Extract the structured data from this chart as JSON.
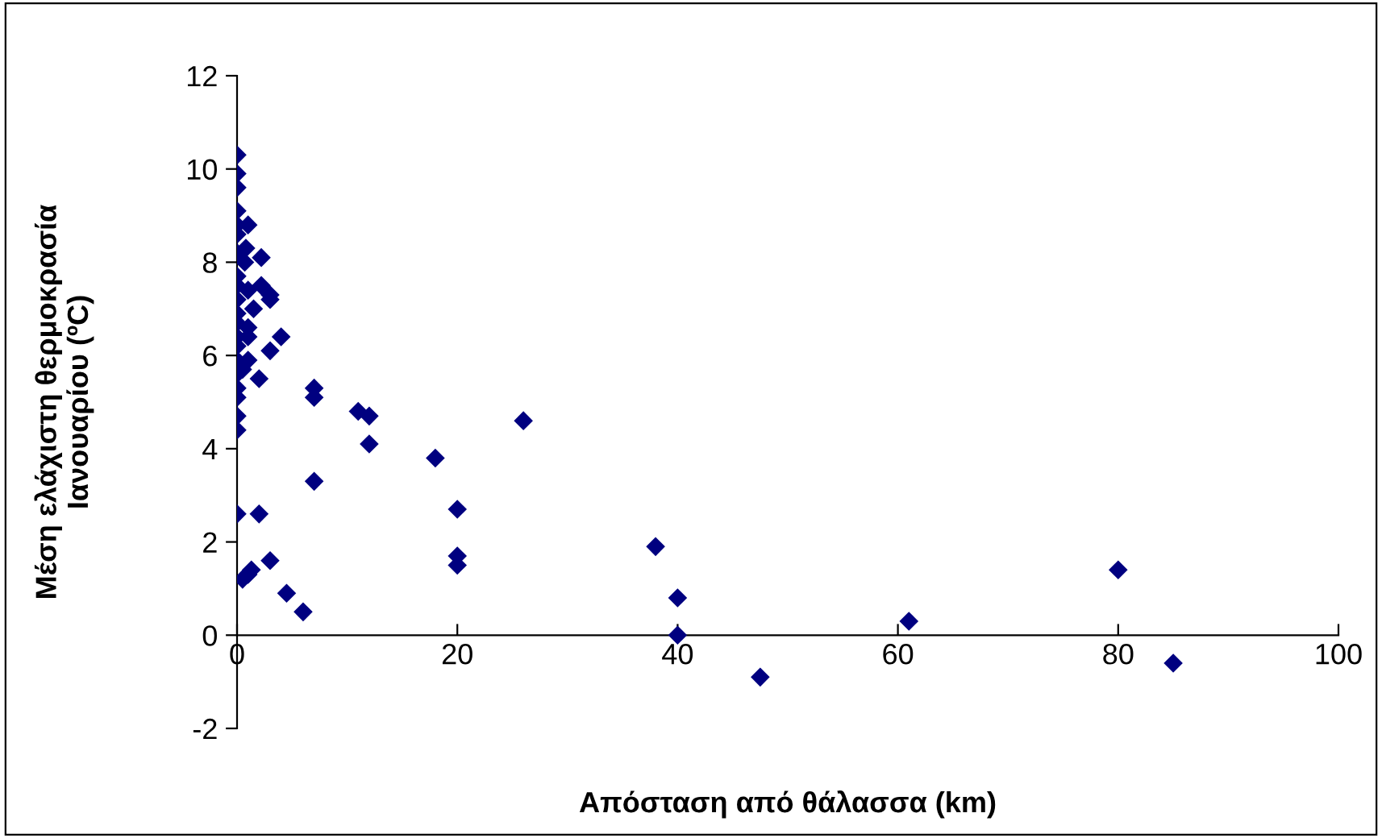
{
  "chart_data": {
    "type": "scatter",
    "xlabel": "Απόσταση από θάλασσα (km)",
    "ylabel": "Μέση ελάχιστη θερμοκρασία\nΙανουαρίου (ºC)",
    "marker": "diamond",
    "grid": false,
    "legend": false,
    "xlim": [
      0,
      100
    ],
    "xticks": [
      0,
      20,
      40,
      60,
      80,
      100
    ],
    "ylim": [
      -2,
      12
    ],
    "yticks": [
      -2,
      0,
      2,
      4,
      6,
      8,
      10,
      12
    ],
    "series": [
      {
        "color": "#000080",
        "x": [
          0,
          0,
          0,
          0,
          0,
          0,
          0,
          0,
          0,
          0,
          0,
          0,
          0,
          0,
          0,
          0,
          0,
          0,
          0,
          0,
          0,
          1,
          0.8,
          0.7,
          1,
          1.5,
          1,
          1,
          1,
          0.5,
          0.5,
          1,
          1.3,
          2.2,
          2.2,
          3,
          3,
          3,
          4,
          2,
          2,
          3,
          4.5,
          6,
          7,
          7,
          7,
          11,
          12,
          12,
          18,
          20,
          20,
          20,
          26,
          38,
          40,
          40,
          47.5,
          61,
          80,
          85
        ],
        "values": [
          10.3,
          9.9,
          9.6,
          9.1,
          8.8,
          8.6,
          8.2,
          7.7,
          7.5,
          7.2,
          6.9,
          6.7,
          6.4,
          6.2,
          5.9,
          5.6,
          5.3,
          5.1,
          4.7,
          4.4,
          2.6,
          8.8,
          8.3,
          8.0,
          7.4,
          7.0,
          6.6,
          6.4,
          5.9,
          5.7,
          1.2,
          1.3,
          1.4,
          8.1,
          7.5,
          7.3,
          7.2,
          6.1,
          6.4,
          5.5,
          2.6,
          1.6,
          0.9,
          0.5,
          5.3,
          5.1,
          3.3,
          4.8,
          4.7,
          4.1,
          3.8,
          2.7,
          1.7,
          1.5,
          4.6,
          1.9,
          0.8,
          0.0,
          -0.9,
          0.3,
          1.4,
          -0.6
        ]
      }
    ]
  }
}
